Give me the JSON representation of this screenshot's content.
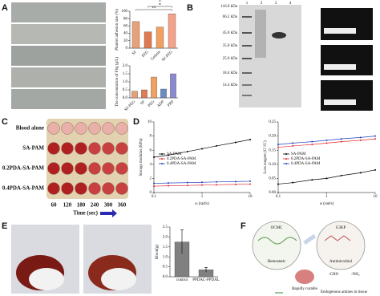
{
  "figure": {
    "panel_labels": [
      "A",
      "B",
      "C",
      "D",
      "E",
      "F"
    ]
  },
  "gel": {
    "markers": [
      "116.0 kDa",
      "66.2 kDa",
      "45.0 kDa",
      "35.0 kDa",
      "25.0 kDa",
      "18.4 kDa",
      "14.4 kDa"
    ],
    "lanes": [
      "1",
      "2",
      "3",
      "4"
    ]
  },
  "plate": {
    "rows": [
      "Blood alone",
      "SA-PAM",
      "0.2PDA-SA-PAM",
      "0.4PDA-SA-PAM"
    ],
    "times": [
      "60",
      "120",
      "180",
      "240",
      "300",
      "360"
    ],
    "axis_label": "Time (sec)"
  },
  "diagram": {
    "left": "OCMC",
    "right": "G3KP",
    "hemostatic": "Hemostatic",
    "antimicrobial": "Antimicrobial",
    "wound": "Rapidly curable",
    "legend": [
      "-CHO",
      "-NH₂"
    ],
    "note": "Endogenous amines in tissue"
  },
  "chart_data": [
    {
      "type": "bar",
      "y_label": "Platelet adhesion rate (%)",
      "categories": [
        "SF",
        "PEG",
        "Gelatin",
        "SF-PEG"
      ],
      "values": [
        72,
        44,
        57,
        93
      ],
      "colors": [
        "#e8a07a",
        "#e07a52",
        "#f0a060",
        "#f4a38a"
      ],
      "ylim": [
        0,
        100
      ],
      "yticks": [
        0,
        20,
        40,
        60,
        80,
        100
      ],
      "annotations": [
        "**",
        "*",
        "*"
      ]
    },
    {
      "type": "bar",
      "y_label": "The concentration of Fbg (g/L)",
      "categories": [
        "SF-PEG",
        "SF",
        "PEG",
        "ADP",
        "PRP"
      ],
      "values": [
        0.42,
        0.5,
        1.3,
        0.55,
        1.5
      ],
      "colors": [
        "#e8a07a",
        "#e07a52",
        "#f0a060",
        "#6a8cc0",
        "#8a8ad0"
      ],
      "ylim": [
        0,
        2
      ],
      "yticks": [
        {
          "value": 0,
          "label": "0.0"
        },
        0.5,
        {
          "value": 1,
          "label": "1.0"
        },
        1.5,
        {
          "value": 2,
          "label": "2.0"
        }
      ]
    },
    {
      "type": "line",
      "y_label": "Storage modulus (KPa)",
      "x_label": "ω (rad/s)",
      "x": [
        0.1,
        0.2,
        0.5,
        1,
        2,
        5,
        10
      ],
      "log_x": true,
      "xlim": [
        0.1,
        10
      ],
      "xticks": [
        0.1,
        1,
        10
      ],
      "ylim": [
        0,
        10
      ],
      "yticks": [
        0,
        2,
        4,
        6,
        8,
        10
      ],
      "legend": "center-left",
      "series": [
        {
          "name": "SA-PAM",
          "color": "#000000",
          "values": [
            5.0,
            5.3,
            5.8,
            6.2,
            6.6,
            7.1,
            7.5
          ]
        },
        {
          "name": "0.2PDA-SA-PAM",
          "color": "#e03030",
          "values": [
            0.9,
            0.95,
            1.0,
            1.05,
            1.1,
            1.15,
            1.2
          ]
        },
        {
          "name": "0.4PDA-SA-PAM",
          "color": "#2040c0",
          "values": [
            1.3,
            1.35,
            1.4,
            1.45,
            1.5,
            1.55,
            1.6
          ]
        }
      ]
    },
    {
      "type": "line",
      "y_label": "Loss tangent (G''/G')",
      "x_label": "ω (rad/s)",
      "x": [
        0.1,
        0.2,
        0.5,
        1,
        2,
        5,
        10
      ],
      "log_x": true,
      "xlim": [
        0.1,
        10
      ],
      "xticks": [
        0.1,
        1,
        10
      ],
      "ylim": [
        0,
        0.25
      ],
      "yticks": [
        {
          "value": 0,
          "label": "0.00"
        },
        0.05,
        {
          "value": 0.1,
          "label": "0.10"
        },
        0.15,
        {
          "value": 0.2,
          "label": "0.20"
        },
        0.25
      ],
      "legend": "center-left",
      "series": [
        {
          "name": "SA-PAM",
          "color": "#000000",
          "values": [
            0.03,
            0.035,
            0.045,
            0.05,
            0.06,
            0.07,
            0.08
          ]
        },
        {
          "name": "0.2PDA-SA-PAM",
          "color": "#e03030",
          "values": [
            0.16,
            0.165,
            0.17,
            0.175,
            0.18,
            0.185,
            0.19
          ]
        },
        {
          "name": "0.4PDA-SA-PAM",
          "color": "#2040c0",
          "values": [
            0.17,
            0.175,
            0.18,
            0.185,
            0.19,
            0.195,
            0.2
          ]
        }
      ]
    },
    {
      "type": "bar",
      "y_label": "Blood(g)",
      "categories": [
        "control",
        "PPDAC-PPDAL"
      ],
      "values": [
        1.75,
        0.35
      ],
      "errors": [
        0.6,
        0.12
      ],
      "colors": [
        "#808080",
        "#808080"
      ],
      "ylim": [
        0,
        2.5
      ],
      "yticks": [
        {
          "value": 0,
          "label": "0.0"
        },
        0.5,
        {
          "value": 1,
          "label": "1.0"
        },
        1.5,
        {
          "value": 2,
          "label": "2.0"
        },
        2.5
      ]
    }
  ]
}
